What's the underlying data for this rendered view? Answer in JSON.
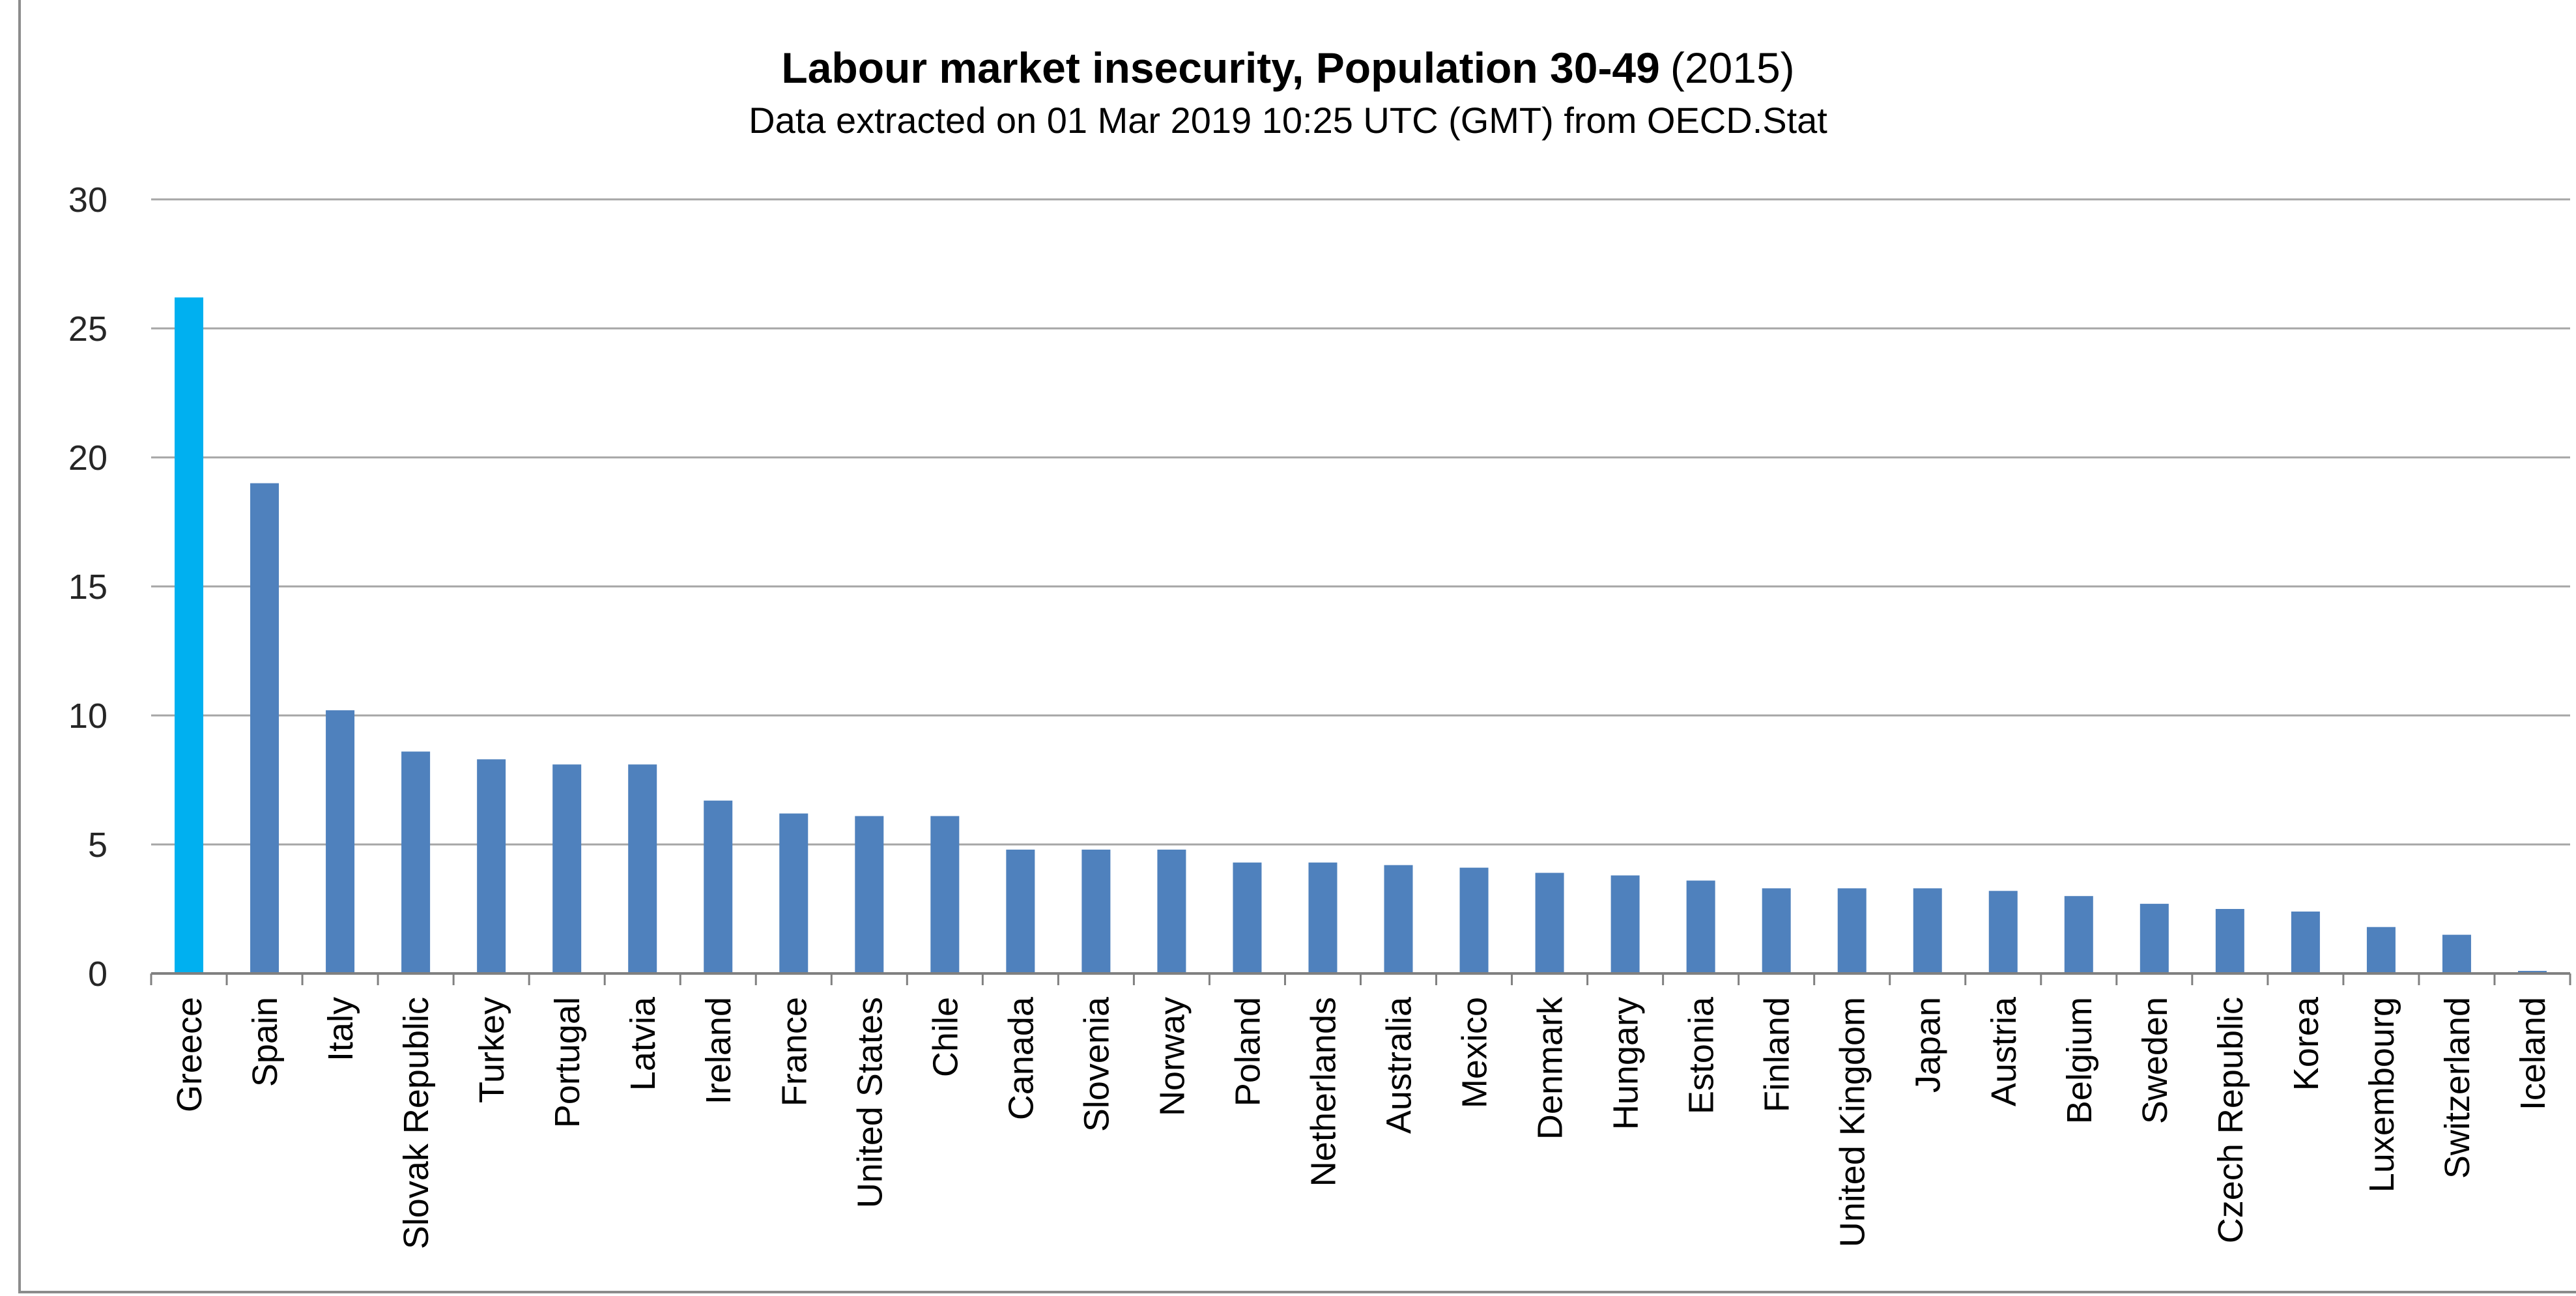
{
  "chart_data": {
    "type": "bar",
    "title": "Labour market insecurity, Population 30-49",
    "title_suffix": "(2015)",
    "subtitle": "Data extracted on 01 Mar 2019 10:25 UTC (GMT) from OECD.Stat",
    "xlabel": "",
    "ylabel": "",
    "ylim": [
      0,
      30
    ],
    "yticks": [
      "0",
      "5",
      "10",
      "15",
      "20",
      "25",
      "30"
    ],
    "grid": true,
    "legend": "none",
    "colors": {
      "default": "#4f81bd",
      "highlight": "#00b0f0",
      "grid": "#a6a6a6",
      "axis": "#808080"
    },
    "highlight_index": 0,
    "categories": [
      "Greece",
      "Spain",
      "Italy",
      "Slovak Republic",
      "Turkey",
      "Portugal",
      "Latvia",
      "Ireland",
      "France",
      "United States",
      "Chile",
      "Canada",
      "Slovenia",
      "Norway",
      "Poland",
      "Netherlands",
      "Australia",
      "Mexico",
      "Denmark",
      "Hungary",
      "Estonia",
      "Finland",
      "United Kingdom",
      "Japan",
      "Austria",
      "Belgium",
      "Sweden",
      "Czech Republic",
      "Korea",
      "Luxembourg",
      "Switzerland",
      "Iceland"
    ],
    "values": [
      26.2,
      19.0,
      10.2,
      8.6,
      8.3,
      8.1,
      8.1,
      6.7,
      6.2,
      6.1,
      6.1,
      4.8,
      4.8,
      4.8,
      4.3,
      4.3,
      4.2,
      4.1,
      3.9,
      3.8,
      3.6,
      3.3,
      3.3,
      3.3,
      3.2,
      3.0,
      2.7,
      2.5,
      2.4,
      1.8,
      1.5,
      0.1
    ]
  }
}
